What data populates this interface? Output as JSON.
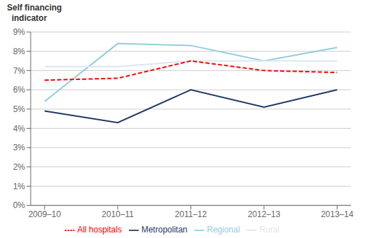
{
  "chart_data": {
    "type": "line",
    "ylabel": [
      "Self financing",
      "  indicator"
    ],
    "categories": [
      "2009–10",
      "2010–11",
      "2011–12",
      "2012–13",
      "2013–14"
    ],
    "series": [
      {
        "name": "Metropolitan",
        "color": "#1f3864",
        "values": [
          4.9,
          4.3,
          6.0,
          5.1,
          6.0
        ],
        "line_style": "solid"
      },
      {
        "name": "Regional",
        "color": "#92cddc",
        "values": [
          5.4,
          8.4,
          8.3,
          7.5,
          8.2
        ],
        "line_style": "solid"
      },
      {
        "name": "Rural",
        "color": "#dce6f1",
        "values": [
          7.2,
          7.2,
          7.5,
          7.5,
          7.5
        ],
        "line_style": "solid"
      },
      {
        "name": "All hospitals",
        "color": "#ff0000",
        "values": [
          6.5,
          6.6,
          7.5,
          7.0,
          6.9
        ],
        "line_style": "dashed"
      }
    ],
    "ylim": [
      0,
      9
    ],
    "yticks": [
      {
        "value": 0,
        "label": "0%"
      },
      {
        "value": 1,
        "label": "1%"
      },
      {
        "value": 2,
        "label": "2%"
      },
      {
        "value": 3,
        "label": "3%"
      },
      {
        "value": 4,
        "label": "4%"
      },
      {
        "value": 5,
        "label": "5%"
      },
      {
        "value": 6,
        "label": "6%"
      },
      {
        "value": 7,
        "label": "7%"
      },
      {
        "value": 8,
        "label": "8%"
      },
      {
        "value": 9,
        "label": "9%"
      }
    ],
    "grid": true,
    "legend": "bottom"
  }
}
